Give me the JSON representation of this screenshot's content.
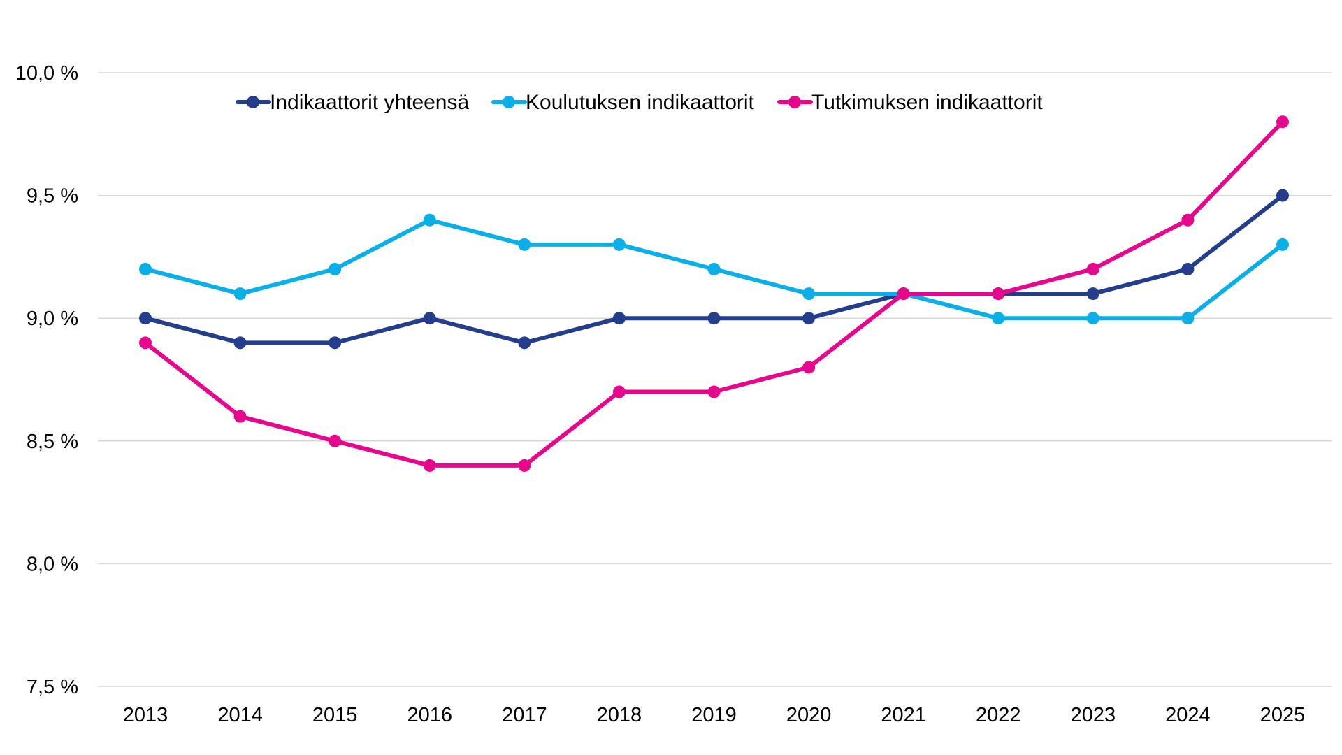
{
  "chart_data": {
    "type": "line",
    "categories": [
      "2013",
      "2014",
      "2015",
      "2016",
      "2017",
      "2018",
      "2019",
      "2020",
      "2021",
      "2022",
      "2023",
      "2024",
      "2025"
    ],
    "series": [
      {
        "name": "Indikaattorit yhteensä",
        "color": "#253E8C",
        "values": [
          9.0,
          8.9,
          8.9,
          9.0,
          8.9,
          9.0,
          9.0,
          9.0,
          9.1,
          9.1,
          9.1,
          9.2,
          9.5
        ]
      },
      {
        "name": "Koulutuksen indikaattorit",
        "color": "#0AAFE8",
        "values": [
          9.2,
          9.1,
          9.2,
          9.4,
          9.3,
          9.3,
          9.2,
          9.1,
          9.1,
          9.0,
          9.0,
          9.0,
          9.3
        ]
      },
      {
        "name": "Tutkimuksen indikaattorit",
        "color": "#E6078C",
        "values": [
          8.9,
          8.6,
          8.5,
          8.4,
          8.4,
          8.7,
          8.7,
          8.8,
          9.1,
          9.1,
          9.2,
          9.4,
          9.8
        ]
      }
    ],
    "y_ticks": [
      7.5,
      8.0,
      8.5,
      9.0,
      9.5,
      10.0
    ],
    "y_tick_labels": [
      "7,5 %",
      "8,0 %",
      "8,5 %",
      "9,0 %",
      "9,5 %",
      "10,0 %"
    ],
    "ylim": [
      7.5,
      10.0
    ],
    "grid": true,
    "legend_position": "top"
  }
}
